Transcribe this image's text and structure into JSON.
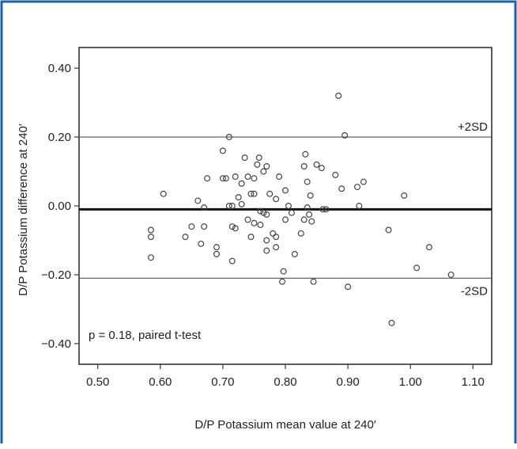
{
  "colors": {
    "frame_border": "#1f5fa8",
    "axis": "#333333",
    "mean_line": "#111111",
    "sd_line": "#555555",
    "marker_stroke": "#444444"
  },
  "chart_data": {
    "type": "scatter",
    "title": "",
    "xlabel": "D/P Potassium mean value at 240′",
    "ylabel": "D/P Potassium difference at 240′",
    "xlim": [
      0.47,
      1.13
    ],
    "ylim": [
      -0.46,
      0.46
    ],
    "x_ticks": [
      0.5,
      0.6,
      0.7,
      0.8,
      0.9,
      1.0,
      1.1
    ],
    "x_tick_labels": [
      "0.50",
      "0.60",
      "0.70",
      "0.80",
      "0.90",
      "1.00",
      "1.10"
    ],
    "y_ticks": [
      -0.4,
      -0.2,
      0.0,
      0.2,
      0.4
    ],
    "y_tick_labels": [
      "−0.40",
      "−0.20",
      "0.00",
      "0.20",
      "0.40"
    ],
    "grid": false,
    "reference_lines": [
      {
        "y": 0.2,
        "label": "+2SD",
        "style": "thin"
      },
      {
        "y": -0.01,
        "label": "",
        "style": "bold"
      },
      {
        "y": -0.21,
        "label": "-2SD",
        "style": "thin"
      }
    ],
    "annotation": "p = 0.18, paired t-test",
    "points": [
      [
        0.585,
        -0.09
      ],
      [
        0.585,
        -0.07
      ],
      [
        0.585,
        -0.15
      ],
      [
        0.605,
        0.035
      ],
      [
        0.64,
        -0.09
      ],
      [
        0.65,
        -0.06
      ],
      [
        0.66,
        0.015
      ],
      [
        0.665,
        -0.11
      ],
      [
        0.67,
        -0.06
      ],
      [
        0.67,
        -0.005
      ],
      [
        0.675,
        0.08
      ],
      [
        0.69,
        -0.12
      ],
      [
        0.69,
        -0.14
      ],
      [
        0.7,
        0.16
      ],
      [
        0.7,
        0.08
      ],
      [
        0.705,
        0.08
      ],
      [
        0.71,
        0.2
      ],
      [
        0.71,
        0.0
      ],
      [
        0.715,
        0.0
      ],
      [
        0.715,
        -0.06
      ],
      [
        0.715,
        -0.16
      ],
      [
        0.72,
        0.085
      ],
      [
        0.72,
        -0.065
      ],
      [
        0.725,
        0.025
      ],
      [
        0.73,
        0.065
      ],
      [
        0.73,
        0.005
      ],
      [
        0.735,
        0.14
      ],
      [
        0.74,
        0.085
      ],
      [
        0.74,
        -0.04
      ],
      [
        0.745,
        0.035
      ],
      [
        0.745,
        -0.09
      ],
      [
        0.75,
        0.08
      ],
      [
        0.75,
        0.035
      ],
      [
        0.75,
        -0.05
      ],
      [
        0.755,
        0.12
      ],
      [
        0.758,
        0.14
      ],
      [
        0.76,
        -0.055
      ],
      [
        0.76,
        -0.015
      ],
      [
        0.765,
        0.1
      ],
      [
        0.765,
        -0.02
      ],
      [
        0.77,
        0.115
      ],
      [
        0.77,
        -0.025
      ],
      [
        0.77,
        -0.1
      ],
      [
        0.77,
        -0.13
      ],
      [
        0.775,
        0.035
      ],
      [
        0.78,
        -0.08
      ],
      [
        0.785,
        0.02
      ],
      [
        0.785,
        -0.09
      ],
      [
        0.785,
        -0.12
      ],
      [
        0.79,
        0.085
      ],
      [
        0.795,
        -0.22
      ],
      [
        0.797,
        -0.19
      ],
      [
        0.8,
        0.045
      ],
      [
        0.8,
        -0.04
      ],
      [
        0.805,
        0.0
      ],
      [
        0.81,
        -0.02
      ],
      [
        0.815,
        -0.14
      ],
      [
        0.825,
        -0.08
      ],
      [
        0.83,
        0.115
      ],
      [
        0.83,
        -0.04
      ],
      [
        0.832,
        0.15
      ],
      [
        0.835,
        -0.005
      ],
      [
        0.835,
        0.07
      ],
      [
        0.838,
        -0.025
      ],
      [
        0.84,
        0.03
      ],
      [
        0.842,
        -0.045
      ],
      [
        0.845,
        -0.22
      ],
      [
        0.85,
        0.12
      ],
      [
        0.858,
        0.11
      ],
      [
        0.86,
        -0.01
      ],
      [
        0.865,
        -0.01
      ],
      [
        0.88,
        0.09
      ],
      [
        0.885,
        0.32
      ],
      [
        0.89,
        0.05
      ],
      [
        0.895,
        0.205
      ],
      [
        0.9,
        -0.235
      ],
      [
        0.915,
        0.055
      ],
      [
        0.918,
        0.0
      ],
      [
        0.925,
        0.07
      ],
      [
        0.965,
        -0.07
      ],
      [
        0.97,
        -0.34
      ],
      [
        0.99,
        0.03
      ],
      [
        1.01,
        -0.18
      ],
      [
        1.03,
        -0.12
      ],
      [
        1.065,
        -0.2
      ]
    ]
  }
}
